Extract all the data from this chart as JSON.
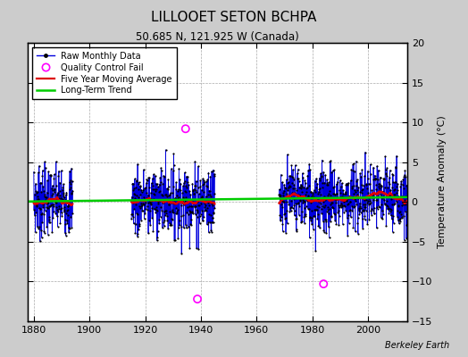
{
  "title": "LILLOOET SETON BCHPA",
  "subtitle": "50.685 N, 121.925 W (Canada)",
  "ylabel": "Temperature Anomaly (°C)",
  "credit": "Berkeley Earth",
  "ylim": [
    -15,
    20
  ],
  "xlim": [
    1878,
    2014
  ],
  "yticks": [
    -15,
    -10,
    -5,
    0,
    5,
    10,
    15,
    20
  ],
  "xticks": [
    1880,
    1900,
    1920,
    1940,
    1960,
    1980,
    2000
  ],
  "plot_bg_color": "#ffffff",
  "fig_bg_color": "#cccccc",
  "line_color": "#0000dd",
  "marker_color": "#000000",
  "ma_color": "#dd0000",
  "trend_color": "#00cc00",
  "qc_color": "#ff00ff",
  "segments": [
    {
      "start_year": 1880,
      "start_month": 1,
      "end_year": 1893,
      "end_month": 12
    },
    {
      "start_year": 1915,
      "start_month": 1,
      "end_year": 1944,
      "end_month": 12
    },
    {
      "start_year": 1968,
      "start_month": 1,
      "end_year": 2013,
      "end_month": 12
    }
  ],
  "qc_times": [
    1934.5,
    1938.75,
    1984.0
  ],
  "qc_values": [
    9.2,
    -12.2,
    -10.3
  ],
  "noise_std": 2.2,
  "trend_slope": 0.004,
  "trend_intercept_year": 1950,
  "trend_at_intercept": 0.35
}
